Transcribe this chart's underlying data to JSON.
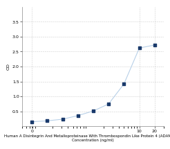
{
  "x": [
    0.078,
    0.156,
    0.313,
    0.625,
    1.25,
    2.5,
    5,
    10,
    20
  ],
  "y": [
    0.152,
    0.183,
    0.238,
    0.358,
    0.513,
    0.748,
    1.42,
    2.62,
    2.72
  ],
  "line_color": "#b8d0e8",
  "marker_color": "#1a3a6b",
  "marker_size": 3.5,
  "xlabel_line1": "Human A Disintegrin And Metalloproteinase With Thrombospondin Like Protein 4 (ADAMTSL4)",
  "xlabel_line2": "Concentration (ng/ml)",
  "ylabel": "OD",
  "xlim_log": [
    -1.2,
    1.38
  ],
  "ylim": [
    0,
    4.0
  ],
  "yticks": [
    0.5,
    1.0,
    1.5,
    2.0,
    2.5,
    3.0,
    3.5
  ],
  "xtick_positions": [
    0.078,
    10,
    20
  ],
  "xtick_labels": [
    "0",
    "10",
    "20"
  ],
  "grid_color": "#d0d0d0",
  "background_color": "#ffffff",
  "label_fontsize": 4.0,
  "tick_fontsize": 4.5,
  "linewidth": 0.8
}
